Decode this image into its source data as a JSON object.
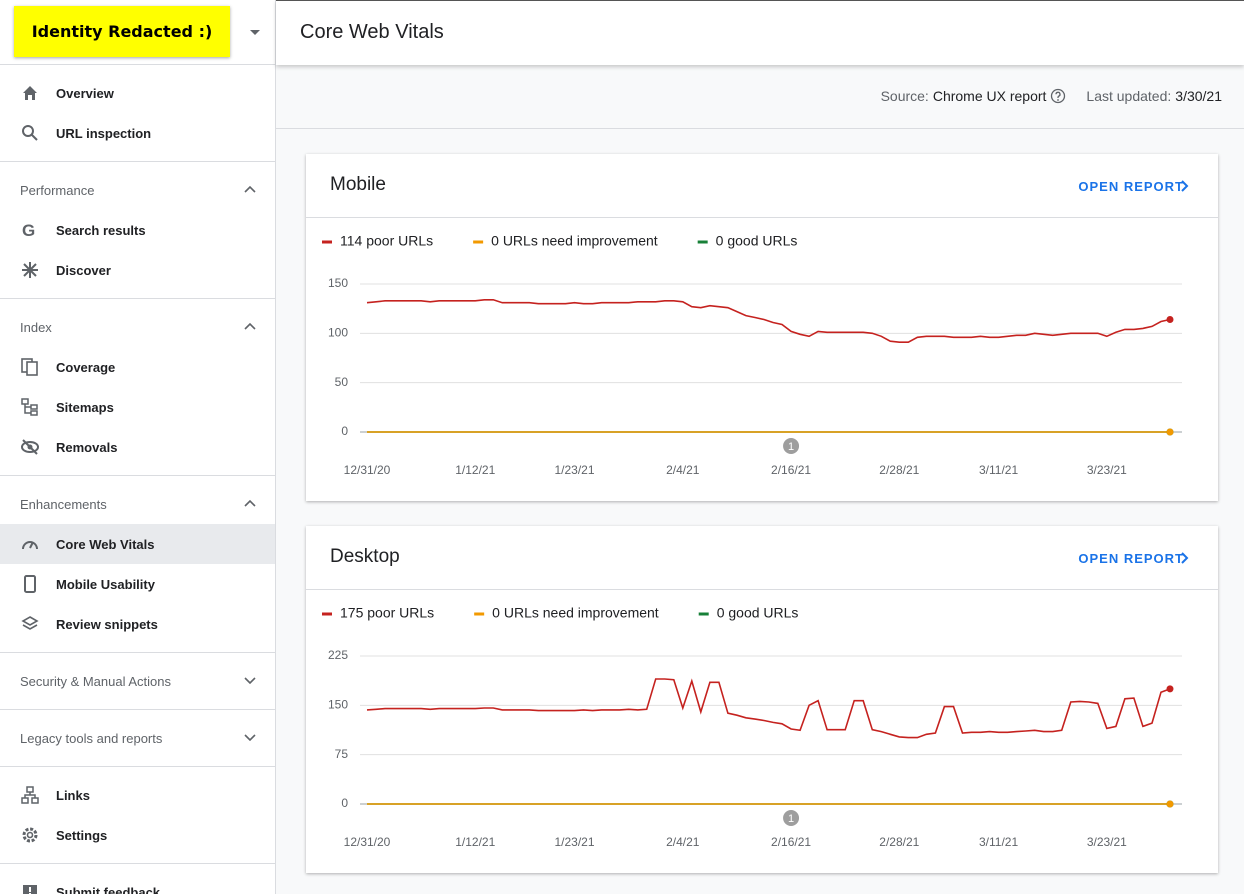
{
  "sidebar": {
    "property": "Identity Redacted :)",
    "top": [
      "Overview",
      "URL inspection"
    ],
    "sections": [
      {
        "title": "Performance",
        "items": [
          "Search results",
          "Discover"
        ]
      },
      {
        "title": "Index",
        "items": [
          "Coverage",
          "Sitemaps",
          "Removals"
        ]
      },
      {
        "title": "Enhancements",
        "items": [
          "Core Web Vitals",
          "Mobile Usability",
          "Review snippets"
        ]
      },
      {
        "title": "Security & Manual Actions"
      },
      {
        "title": "Legacy tools and reports"
      }
    ],
    "bottom": [
      "Links",
      "Settings"
    ],
    "feedback": "Submit feedback"
  },
  "header": {
    "title": "Core Web Vitals"
  },
  "status": {
    "source_label": "Source:",
    "source": "Chrome UX report",
    "updated_label": "Last updated:",
    "updated": "3/30/21"
  },
  "cards": [
    {
      "action": "OPEN REPORT"
    },
    {
      "action": "OPEN REPORT"
    }
  ],
  "chart_data": [
    {
      "type": "line",
      "title": "Mobile",
      "categories": [
        "12/31/20",
        null,
        null,
        null,
        null,
        null,
        null,
        null,
        null,
        null,
        null,
        null,
        "1/12/21",
        null,
        null,
        null,
        null,
        null,
        null,
        null,
        null,
        null,
        null,
        "1/23/21",
        null,
        null,
        null,
        null,
        null,
        null,
        null,
        null,
        null,
        null,
        null,
        "2/4/21",
        null,
        null,
        null,
        null,
        null,
        null,
        null,
        null,
        null,
        null,
        null,
        "2/16/21",
        null,
        null,
        null,
        null,
        null,
        null,
        null,
        null,
        null,
        null,
        null,
        "2/28/21",
        null,
        null,
        null,
        null,
        null,
        null,
        null,
        null,
        null,
        null,
        "3/11/21",
        null,
        null,
        null,
        null,
        null,
        null,
        null,
        null,
        null,
        null,
        null,
        "3/23/21",
        null,
        null,
        null,
        null,
        null,
        null,
        null
      ],
      "series": [
        {
          "name": "114 poor URLs",
          "color": "#c5221f",
          "values": [
            131,
            132,
            133,
            133,
            133,
            133,
            133,
            132,
            133,
            133,
            133,
            133,
            133,
            134,
            134,
            131,
            131,
            131,
            131,
            130,
            130,
            130,
            130,
            131,
            130,
            130,
            131,
            131,
            131,
            131,
            132,
            132,
            132,
            133,
            133,
            132,
            127,
            126,
            128,
            127,
            126,
            122,
            118,
            116,
            114,
            111,
            109,
            102,
            99,
            97,
            102,
            101,
            101,
            101,
            101,
            101,
            100,
            97,
            92,
            91,
            91,
            96,
            97,
            97,
            97,
            96,
            96,
            96,
            97,
            96,
            96,
            97,
            98,
            98,
            100,
            99,
            98,
            99,
            100,
            100,
            100,
            100,
            97,
            101,
            104,
            104,
            105,
            107,
            112,
            114
          ]
        },
        {
          "name": "0 URLs need improvement",
          "color": "#f29900",
          "values": [
            0,
            0,
            0,
            0,
            0,
            0,
            0,
            0,
            0,
            0,
            0,
            0,
            0,
            0,
            0,
            0,
            0,
            0,
            0,
            0,
            0,
            0,
            0,
            0,
            0,
            0,
            0,
            0,
            0,
            0,
            0,
            0,
            0,
            0,
            0,
            0,
            0,
            0,
            0,
            0,
            0,
            0,
            0,
            0,
            0,
            0,
            0,
            0,
            0,
            0,
            0,
            0,
            0,
            0,
            0,
            0,
            0,
            0,
            0,
            0,
            0,
            0,
            0,
            0,
            0,
            0,
            0,
            0,
            0,
            0,
            0,
            0,
            0,
            0,
            0,
            0,
            0,
            0,
            0,
            0,
            0,
            0,
            0,
            0,
            0,
            0,
            0,
            0,
            0,
            0
          ]
        },
        {
          "name": "0 good URLs",
          "color": "#188038",
          "values": [
            0,
            0,
            0,
            0,
            0,
            0,
            0,
            0,
            0,
            0,
            0,
            0,
            0,
            0,
            0,
            0,
            0,
            0,
            0,
            0,
            0,
            0,
            0,
            0,
            0,
            0,
            0,
            0,
            0,
            0,
            0,
            0,
            0,
            0,
            0,
            0,
            0,
            0,
            0,
            0,
            0,
            0,
            0,
            0,
            0,
            0,
            0,
            0,
            0,
            0,
            0,
            0,
            0,
            0,
            0,
            0,
            0,
            0,
            0,
            0,
            0,
            0,
            0,
            0,
            0,
            0,
            0,
            0,
            0,
            0,
            0,
            0,
            0,
            0,
            0,
            0,
            0,
            0,
            0,
            0,
            0,
            0,
            0,
            0,
            0,
            0,
            0,
            0,
            0,
            0
          ]
        }
      ],
      "ylim": [
        0,
        150
      ],
      "yticks": [
        0,
        50,
        100,
        150
      ],
      "grid": true,
      "annotation": {
        "at": 47,
        "text": "1"
      }
    },
    {
      "type": "line",
      "title": "Desktop",
      "categories": [
        "12/31/20",
        null,
        null,
        null,
        null,
        null,
        null,
        null,
        null,
        null,
        null,
        null,
        "1/12/21",
        null,
        null,
        null,
        null,
        null,
        null,
        null,
        null,
        null,
        null,
        "1/23/21",
        null,
        null,
        null,
        null,
        null,
        null,
        null,
        null,
        null,
        null,
        null,
        "2/4/21",
        null,
        null,
        null,
        null,
        null,
        null,
        null,
        null,
        null,
        null,
        null,
        "2/16/21",
        null,
        null,
        null,
        null,
        null,
        null,
        null,
        null,
        null,
        null,
        null,
        "2/28/21",
        null,
        null,
        null,
        null,
        null,
        null,
        null,
        null,
        null,
        null,
        "3/11/21",
        null,
        null,
        null,
        null,
        null,
        null,
        null,
        null,
        null,
        null,
        null,
        "3/23/21",
        null,
        null,
        null,
        null,
        null,
        null,
        null
      ],
      "series": [
        {
          "name": "175 poor URLs",
          "color": "#c5221f",
          "values": [
            143,
            144,
            145,
            145,
            145,
            145,
            145,
            144,
            145,
            145,
            145,
            145,
            145,
            146,
            146,
            143,
            143,
            143,
            143,
            142,
            142,
            142,
            142,
            142,
            143,
            142,
            143,
            143,
            143,
            144,
            143,
            144,
            190,
            190,
            189,
            146,
            187,
            140,
            185,
            185,
            138,
            135,
            131,
            129,
            127,
            124,
            122,
            114,
            112,
            150,
            157,
            113,
            113,
            113,
            157,
            157,
            113,
            110,
            106,
            102,
            101,
            101,
            106,
            108,
            148,
            148,
            108,
            109,
            109,
            110,
            109,
            109,
            110,
            111,
            112,
            110,
            110,
            112,
            155,
            156,
            155,
            153,
            115,
            118,
            160,
            161,
            118,
            123,
            170,
            175
          ]
        },
        {
          "name": "0 URLs need improvement",
          "color": "#f29900",
          "values": [
            0,
            0,
            0,
            0,
            0,
            0,
            0,
            0,
            0,
            0,
            0,
            0,
            0,
            0,
            0,
            0,
            0,
            0,
            0,
            0,
            0,
            0,
            0,
            0,
            0,
            0,
            0,
            0,
            0,
            0,
            0,
            0,
            0,
            0,
            0,
            0,
            0,
            0,
            0,
            0,
            0,
            0,
            0,
            0,
            0,
            0,
            0,
            0,
            0,
            0,
            0,
            0,
            0,
            0,
            0,
            0,
            0,
            0,
            0,
            0,
            0,
            0,
            0,
            0,
            0,
            0,
            0,
            0,
            0,
            0,
            0,
            0,
            0,
            0,
            0,
            0,
            0,
            0,
            0,
            0,
            0,
            0,
            0,
            0,
            0,
            0,
            0,
            0,
            0,
            0
          ]
        },
        {
          "name": "0 good URLs",
          "color": "#188038",
          "values": [
            0,
            0,
            0,
            0,
            0,
            0,
            0,
            0,
            0,
            0,
            0,
            0,
            0,
            0,
            0,
            0,
            0,
            0,
            0,
            0,
            0,
            0,
            0,
            0,
            0,
            0,
            0,
            0,
            0,
            0,
            0,
            0,
            0,
            0,
            0,
            0,
            0,
            0,
            0,
            0,
            0,
            0,
            0,
            0,
            0,
            0,
            0,
            0,
            0,
            0,
            0,
            0,
            0,
            0,
            0,
            0,
            0,
            0,
            0,
            0,
            0,
            0,
            0,
            0,
            0,
            0,
            0,
            0,
            0,
            0,
            0,
            0,
            0,
            0,
            0,
            0,
            0,
            0,
            0,
            0,
            0,
            0,
            0,
            0,
            0,
            0,
            0,
            0,
            0,
            0
          ]
        }
      ],
      "ylim": [
        0,
        225
      ],
      "yticks": [
        0,
        75,
        150,
        225
      ],
      "grid": true,
      "annotation": {
        "at": 47,
        "text": "1"
      }
    }
  ]
}
